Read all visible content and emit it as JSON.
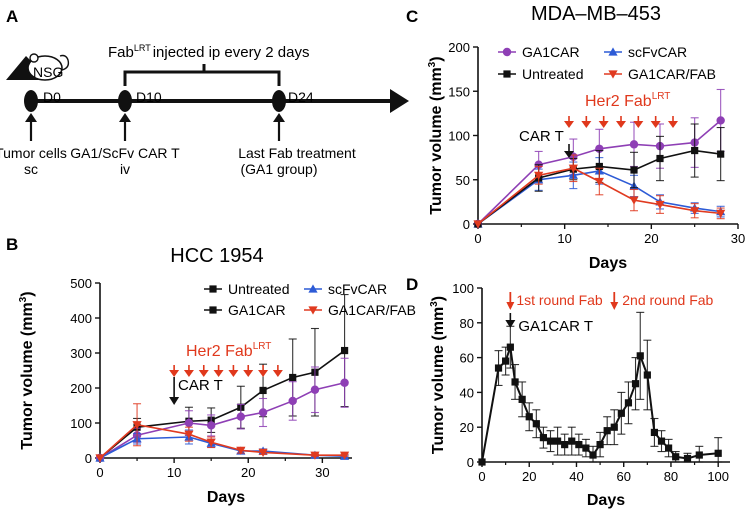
{
  "panel_a": {
    "letter": "A",
    "logo_text": "NSG",
    "fab_label": "Fab",
    "fab_sup": "LRT",
    "fab_rest": "injected ip every 2 days",
    "days": [
      {
        "label": "D0",
        "note_lines": [
          "Tumor cells",
          "sc"
        ]
      },
      {
        "label": "D10",
        "note_lines": [
          "GA1/ScFv CAR T",
          "iv"
        ]
      },
      {
        "label": "D24",
        "note_lines": [
          "Last Fab treatment",
          "(GA1 group)"
        ]
      }
    ]
  },
  "colors": {
    "untreated": "#111111",
    "ga1car": "#8e3fb5",
    "scfvcar": "#2d5bd6",
    "ga1car_fab": "#e03a20",
    "fab_arrow": "#e0381c"
  },
  "chart_data": [
    {
      "panel": "B",
      "type": "line",
      "title": "HCC 1954",
      "xlabel": "Days",
      "ylabel": "Tumor volume (mm",
      "ylabel_sup": "3",
      "ylabel_end": ")",
      "xlim": [
        0,
        34
      ],
      "ylim": [
        0,
        500
      ],
      "xticks": [
        0,
        10,
        20,
        30
      ],
      "yticks": [
        0,
        100,
        200,
        300,
        400,
        500
      ],
      "legend": [
        "Untreated",
        "scFvCAR",
        "GA1CAR",
        "GA1CAR/FAB"
      ],
      "annotation_car": "CAR T",
      "car_day": 10,
      "annotation_fab": "Her2 Fab",
      "annotation_fab_sup": "LRT",
      "fab_days": [
        10,
        12,
        14,
        16,
        18,
        20,
        22,
        24
      ],
      "series": [
        {
          "name": "Untreated",
          "key": "untreated",
          "marker": "square",
          "x": [
            0,
            5,
            12,
            15,
            19,
            22,
            26,
            29,
            33
          ],
          "y": [
            0,
            88,
            105,
            108,
            145,
            193,
            230,
            245,
            307
          ],
          "err": [
            0,
            25,
            40,
            35,
            60,
            75,
            110,
            125,
            160
          ]
        },
        {
          "name": "GA1CAR",
          "key": "ga1car",
          "marker": "circle",
          "x": [
            0,
            5,
            12,
            15,
            19,
            22,
            26,
            29,
            33
          ],
          "y": [
            0,
            65,
            100,
            93,
            118,
            130,
            163,
            195,
            215
          ],
          "err": [
            0,
            20,
            35,
            30,
            35,
            40,
            55,
            65,
            70
          ]
        },
        {
          "name": "scFvCAR",
          "key": "scfvcar",
          "marker": "triangle",
          "x": [
            0,
            5,
            12,
            15,
            19,
            22,
            29,
            33
          ],
          "y": [
            0,
            55,
            60,
            42,
            20,
            20,
            8,
            5
          ],
          "err": [
            0,
            15,
            20,
            12,
            8,
            6,
            3,
            3
          ]
        },
        {
          "name": "GA1CAR/FAB",
          "key": "ga1car_fab",
          "marker": "triangle-down",
          "x": [
            0,
            5,
            12,
            15,
            19,
            22,
            29,
            33
          ],
          "y": [
            0,
            95,
            68,
            45,
            22,
            16,
            8,
            8
          ],
          "err": [
            0,
            60,
            20,
            15,
            8,
            6,
            3,
            3
          ]
        }
      ]
    },
    {
      "panel": "C",
      "type": "line",
      "title": "MDA–MB–453",
      "xlabel": "Days",
      "ylabel": "Tumor volume (mm",
      "ylabel_sup": "3",
      "ylabel_end": ")",
      "xlim": [
        0,
        30
      ],
      "ylim": [
        0,
        200
      ],
      "xticks": [
        0,
        10,
        20,
        30
      ],
      "yticks": [
        0,
        50,
        100,
        150,
        200
      ],
      "legend": [
        "GA1CAR",
        "scFvCAR",
        "Untreated",
        "GA1CAR/FAB"
      ],
      "annotation_car": "CAR T",
      "car_day": 10.5,
      "annotation_fab": "Her2 Fab",
      "annotation_fab_sup": "LRT",
      "fab_days": [
        10.5,
        12.5,
        14.5,
        16.5,
        18.5,
        20.5,
        22.5
      ],
      "series": [
        {
          "name": "GA1CAR",
          "key": "ga1car",
          "marker": "circle",
          "x": [
            0,
            7,
            11,
            14,
            18,
            21,
            25,
            28
          ],
          "y": [
            0,
            67,
            76,
            85,
            90,
            88,
            92,
            117
          ],
          "err": [
            0,
            15,
            20,
            22,
            25,
            25,
            28,
            35
          ]
        },
        {
          "name": "scFvCAR",
          "key": "scfvcar",
          "marker": "triangle",
          "x": [
            0,
            7,
            11,
            14,
            18,
            21,
            25,
            28
          ],
          "y": [
            0,
            50,
            55,
            60,
            43,
            25,
            18,
            14
          ],
          "err": [
            0,
            12,
            15,
            15,
            12,
            8,
            6,
            6
          ]
        },
        {
          "name": "Untreated",
          "key": "untreated",
          "marker": "square",
          "x": [
            0,
            7,
            11,
            14,
            18,
            21,
            25,
            28
          ],
          "y": [
            0,
            52,
            62,
            65,
            61,
            74,
            83,
            79
          ],
          "err": [
            0,
            15,
            12,
            18,
            20,
            25,
            30,
            30
          ]
        },
        {
          "name": "GA1CAR/FAB",
          "key": "ga1car_fab",
          "marker": "triangle-down",
          "x": [
            0,
            7,
            11,
            14,
            18,
            21,
            25,
            28
          ],
          "y": [
            0,
            55,
            63,
            48,
            27,
            22,
            15,
            12
          ],
          "err": [
            0,
            10,
            15,
            15,
            12,
            10,
            8,
            6
          ]
        }
      ]
    },
    {
      "panel": "D",
      "type": "line",
      "title": "",
      "xlabel": "Days",
      "ylabel": "Tumor volume (mm",
      "ylabel_sup": "3",
      "ylabel_end": ")",
      "xlim": [
        0,
        105
      ],
      "ylim": [
        0,
        100
      ],
      "xticks": [
        0,
        20,
        40,
        60,
        80,
        100
      ],
      "yticks": [
        0,
        20,
        40,
        60,
        80,
        100
      ],
      "annotation_car": "GA1CAR T",
      "car_day": 12,
      "round1_label": "1st round Fab",
      "round1_day": 12,
      "round2_label": "2nd round Fab",
      "round2_day": 56,
      "series": [
        {
          "name": "GA1CAR",
          "key": "untreated",
          "marker": "square",
          "x": [
            0,
            7,
            10,
            12,
            14,
            17,
            20,
            23,
            26,
            29,
            32,
            35,
            38,
            41,
            44,
            47,
            50,
            53,
            56,
            59,
            62,
            65,
            67,
            70,
            73,
            76,
            79,
            82,
            87,
            92,
            100
          ],
          "y": [
            0,
            54,
            58,
            66,
            46,
            36,
            26,
            22,
            14,
            12,
            12,
            10,
            12,
            10,
            8,
            4,
            10,
            18,
            20,
            28,
            34,
            45,
            61,
            50,
            17,
            12,
            8,
            3,
            2,
            4,
            5
          ],
          "err": [
            0,
            10,
            8,
            12,
            10,
            10,
            8,
            8,
            6,
            6,
            8,
            6,
            8,
            6,
            5,
            5,
            7,
            8,
            10,
            12,
            12,
            15,
            25,
            20,
            8,
            6,
            5,
            3,
            3,
            5,
            9
          ]
        }
      ]
    }
  ]
}
